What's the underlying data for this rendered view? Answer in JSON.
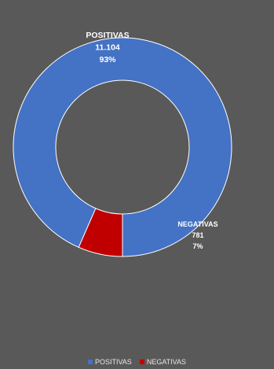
{
  "chart_data": {
    "type": "pie",
    "donut": true,
    "categories": [
      "POSITIVAS",
      "NEGATIVAS"
    ],
    "values": [
      11104,
      781
    ],
    "value_labels": [
      "11.104",
      "781"
    ],
    "percent_labels": [
      "93%",
      "7%"
    ],
    "colors": [
      "#4472C4",
      "#C00000"
    ],
    "legend_position": "bottom",
    "title": ""
  },
  "legend": [
    {
      "label": "POSITIVAS",
      "color": "#4472C4"
    },
    {
      "label": "NEGATIVAS",
      "color": "#C00000"
    }
  ]
}
